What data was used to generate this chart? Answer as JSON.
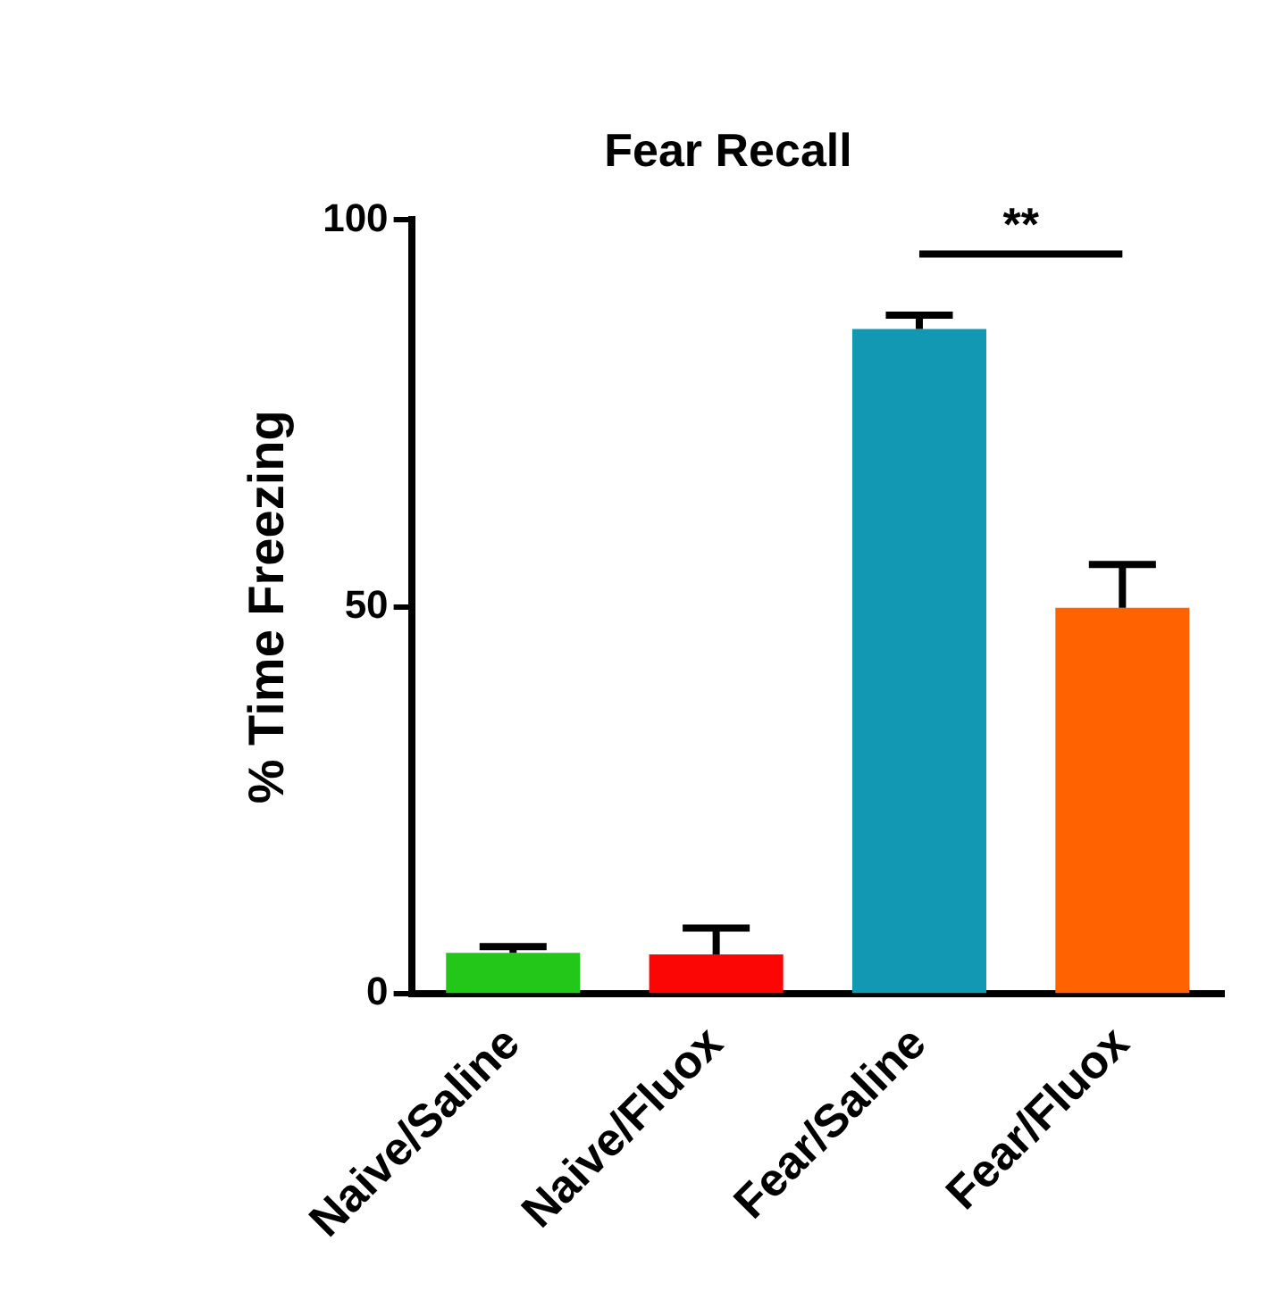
{
  "chart_data": {
    "type": "bar",
    "title": "Fear Recall",
    "ylabel": "% Time Freezing",
    "categories": [
      "Naive/Saline",
      "Naive/Fluox",
      "Fear/Saline",
      "Fear/Fluox"
    ],
    "values": [
      5.3,
      5.1,
      85.9,
      49.9
    ],
    "colors": [
      "#22c71a",
      "#fb0505",
      "#1398b4",
      "#ff6200"
    ],
    "errors": [
      [
        5.3,
        6.1
      ],
      [
        5.1,
        8.5
      ],
      [
        85.9,
        87.7
      ],
      [
        49.9,
        55.5
      ]
    ],
    "ylim": [
      0,
      100
    ],
    "yticks": [
      0,
      50,
      100
    ],
    "grid": false,
    "legend": false,
    "annotations": [
      "**"
    ]
  }
}
